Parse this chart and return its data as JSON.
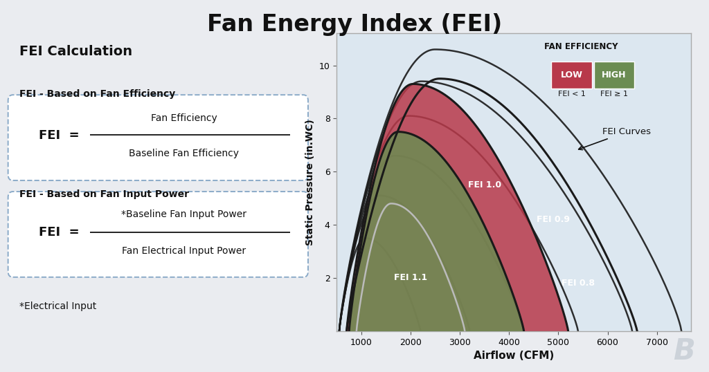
{
  "title": "Fan Energy Index (FEI)",
  "title_fontsize": 24,
  "bg_color": "#eaecf0",
  "chart_bg": "#dce7f0",
  "chart_border": "#aaaaaa",
  "left_panel": {
    "calc_title": "FEI Calculation",
    "formula1_title": "FEI - Based on Fan Efficiency",
    "formula1_num": "Fan Efficiency",
    "formula1_den": "Baseline Fan Efficiency",
    "formula2_title": "FEI - Based on Fan Input Power",
    "formula2_num": "*Baseline Fan Input Power",
    "formula2_den": "Fan Electrical Input Power",
    "footnote": "*Electrical Input",
    "fei_label": "FEI  ="
  },
  "chart": {
    "xlabel": "Airflow (CFM)",
    "ylabel": "Static Pressure (in.WC)",
    "xlim": [
      500,
      7700
    ],
    "ylim": [
      0,
      11.2
    ],
    "xticks": [
      1000,
      2000,
      3000,
      4000,
      5000,
      6000,
      7000
    ],
    "yticks": [
      2,
      4,
      6,
      8,
      10
    ],
    "legend_title": "FAN EFFICIENCY",
    "legend_low": "LOW",
    "legend_high": "HIGH",
    "legend_fei_low": "FEI < 1",
    "legend_fei_high": "FEI ≥ 1",
    "red_color": "#b8394a",
    "green_color": "#6b8c52",
    "fill_alpha": 0.85,
    "curve_color": "#1a1a1a",
    "gray_curve_color": "#bbbbbb",
    "label_fei09": "FEI 0.9",
    "label_fei08": "FEI 0.8",
    "label_fei10": "FEI 1.0",
    "label_fei11": "FEI 1.1",
    "annotation": "FEI Curves"
  }
}
